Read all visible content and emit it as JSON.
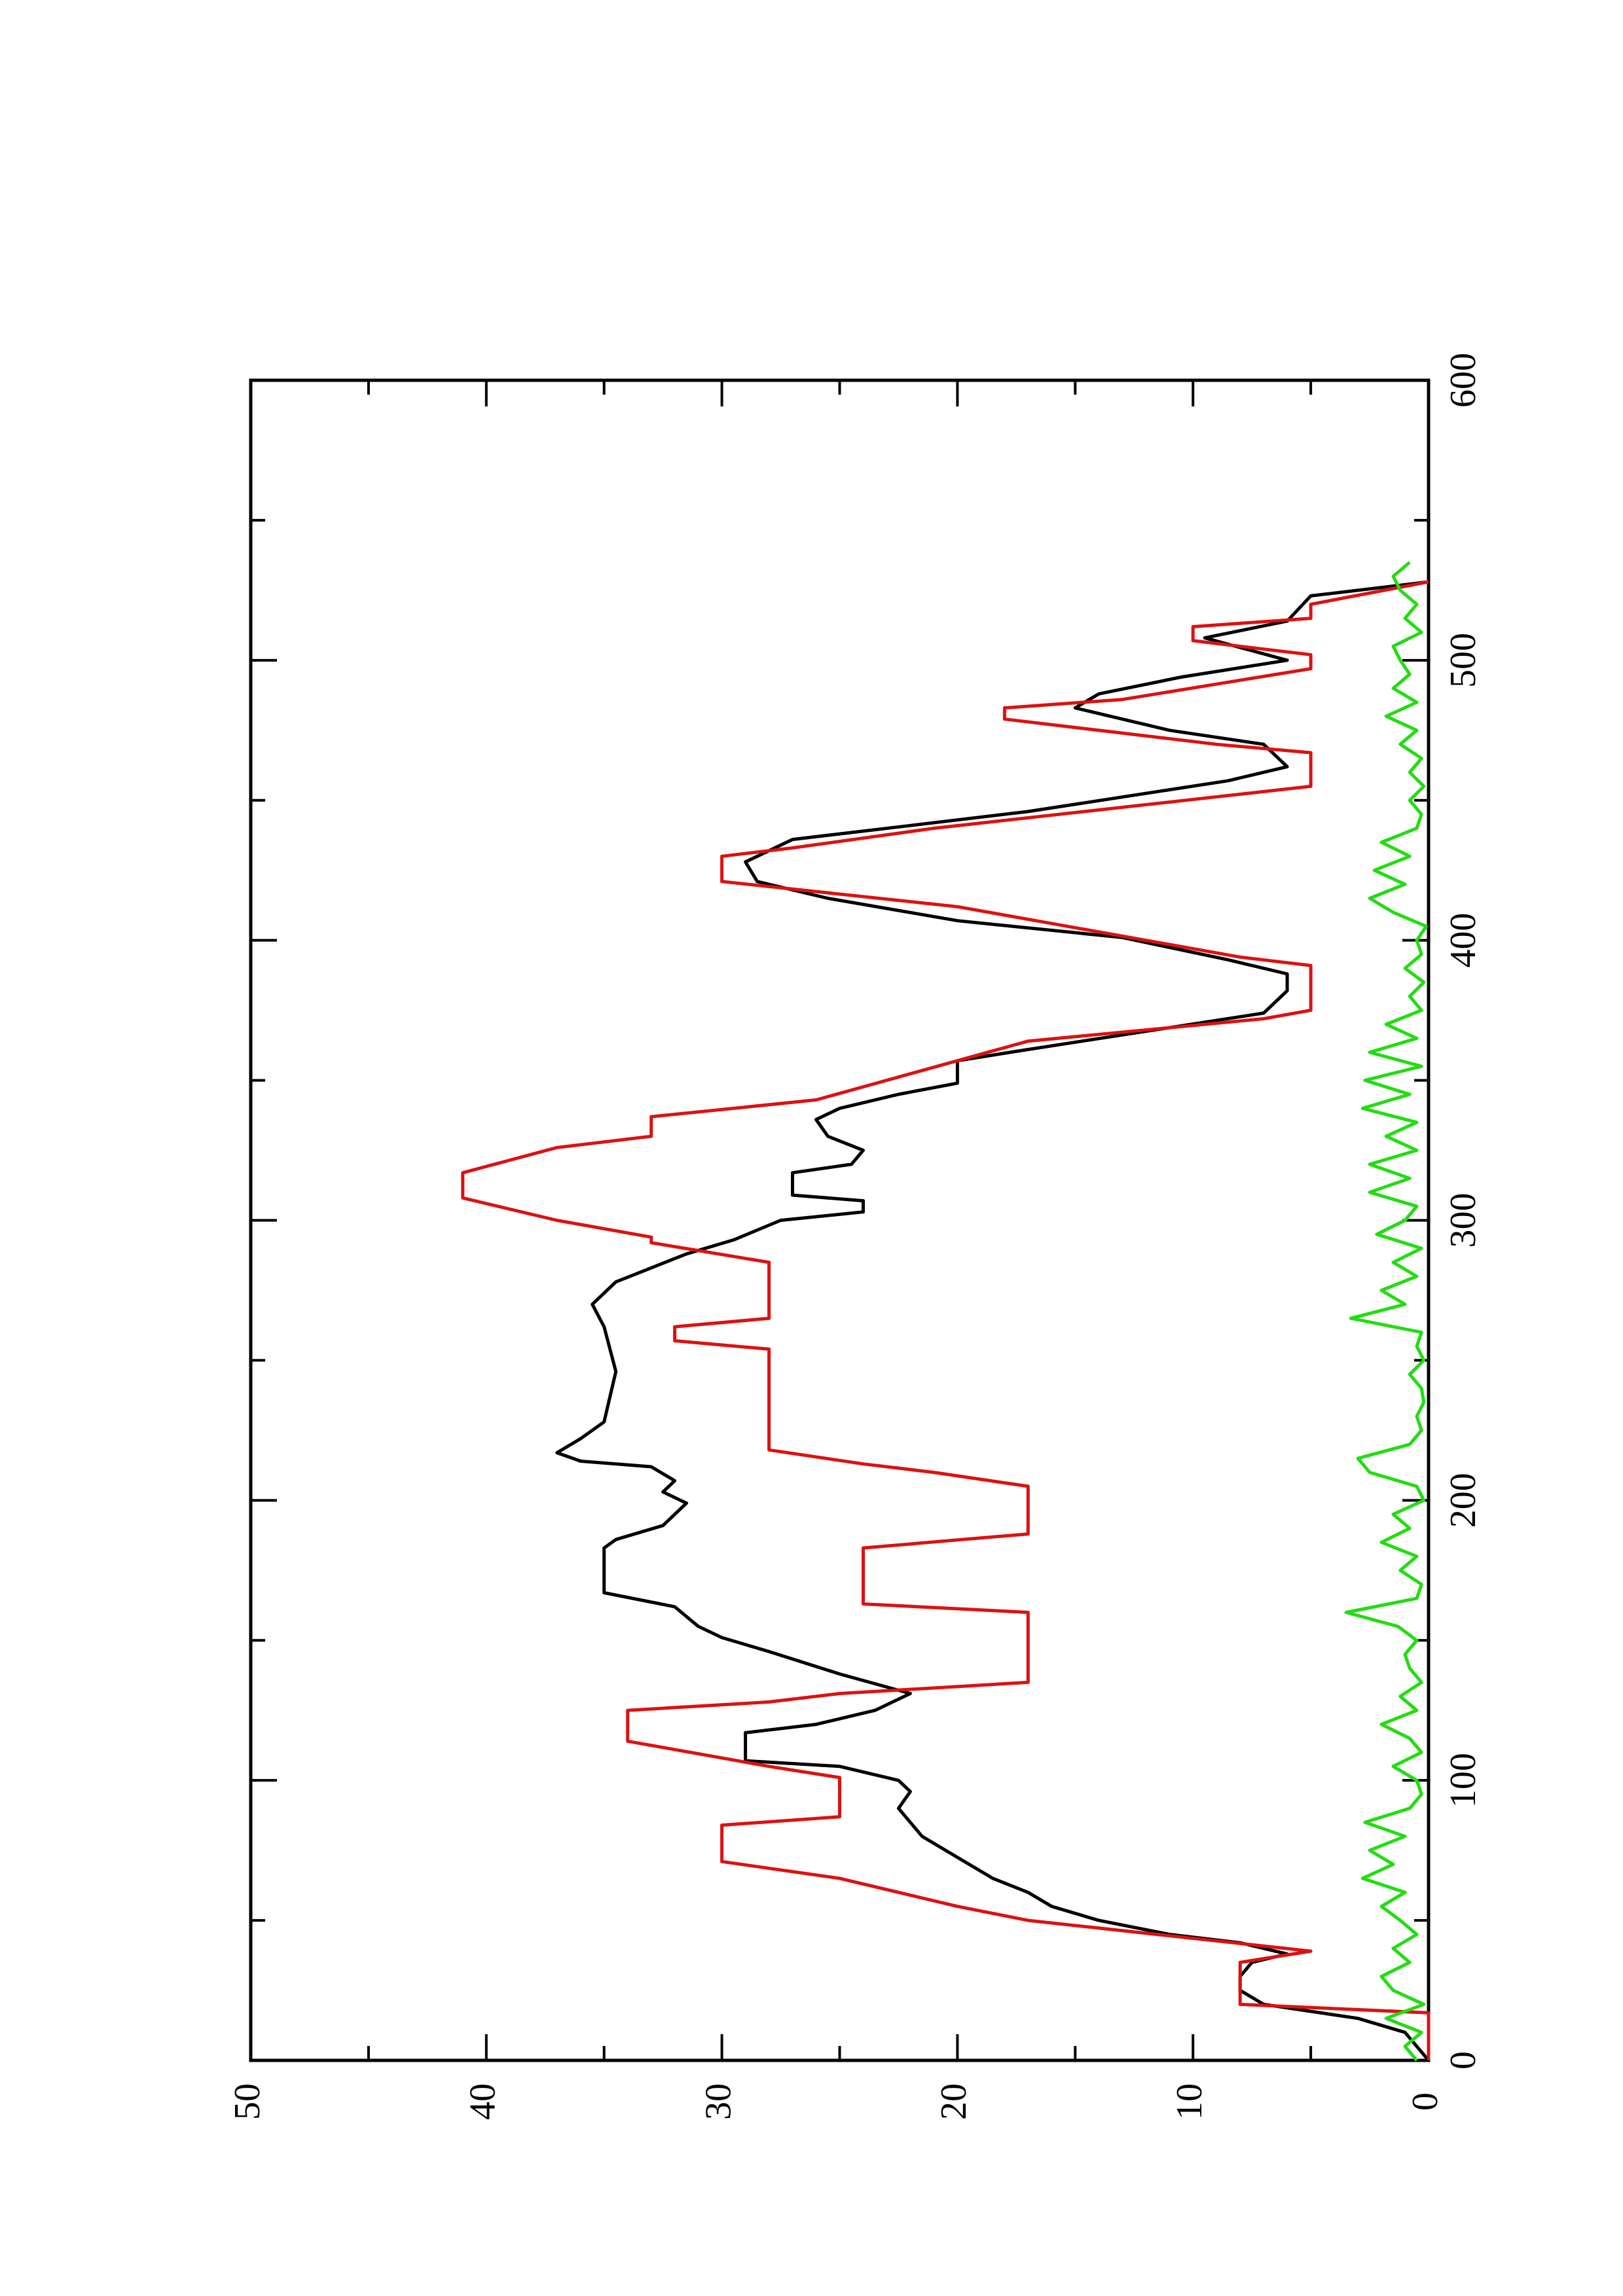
{
  "chart_data": {
    "type": "line",
    "xlim": [
      0,
      600
    ],
    "ylim": [
      0,
      50
    ],
    "xticks": [
      0,
      100,
      200,
      300,
      400,
      500,
      600
    ],
    "yticks": [
      0,
      10,
      20,
      30,
      40,
      50
    ],
    "xminorticks": [
      50,
      150,
      250,
      350,
      450,
      550
    ],
    "yminorticks": [
      5,
      15,
      25,
      35,
      45
    ],
    "series": [
      {
        "color": "#000000",
        "x": [
          0,
          10,
          15,
          20,
          25,
          30,
          35,
          38,
          42,
          45,
          50,
          55,
          60,
          65,
          70,
          75,
          80,
          85,
          90,
          96,
          100,
          105,
          107,
          117,
          120,
          125,
          131,
          138,
          146,
          151,
          155,
          162,
          167,
          183,
          186,
          191,
          199,
          203,
          207,
          212,
          214,
          217,
          222,
          228,
          246,
          262,
          270,
          278,
          283,
          288,
          293,
          300,
          303,
          307,
          309,
          317,
          320,
          325,
          330,
          336,
          340,
          345,
          349,
          357,
          361,
          374,
          382,
          388,
          393,
          401,
          407,
          415,
          421,
          428,
          436,
          441,
          446,
          457,
          462,
          470,
          475,
          483,
          488,
          494,
          500,
          508,
          514,
          523,
          528,
          536
        ],
        "values": [
          0,
          1,
          3,
          7,
          8,
          8,
          7.5,
          6,
          8,
          11,
          14,
          16,
          17,
          18.5,
          19.5,
          20.5,
          21.5,
          22,
          22.5,
          22,
          22.5,
          25,
          29,
          29,
          26,
          23.5,
          22,
          25,
          28,
          30,
          31,
          32,
          35,
          35,
          34.5,
          32.5,
          31.5,
          32.5,
          32,
          33,
          36,
          37,
          36,
          35,
          34.5,
          35,
          35.5,
          34.5,
          33,
          31.5,
          29.5,
          27.5,
          24,
          24,
          27,
          27,
          24.5,
          24,
          25.5,
          26,
          25,
          22.5,
          20,
          20,
          17,
          7,
          6,
          6,
          8.5,
          13,
          20,
          25.5,
          28.5,
          29,
          27,
          22,
          17,
          8.5,
          6,
          7,
          11,
          15,
          14,
          10.5,
          6,
          9.5,
          6,
          5,
          0,
          0
        ]
      },
      {
        "color": "#dd1111",
        "x": [
          0,
          17,
          20,
          35,
          39,
          50,
          55,
          65,
          71,
          84,
          87,
          101,
          105,
          114,
          125,
          128,
          131,
          135,
          160,
          163,
          183,
          188,
          205,
          210,
          213,
          218,
          254,
          257,
          262,
          265,
          285,
          292,
          294,
          300,
          308,
          317,
          326,
          330,
          337,
          343,
          364,
          372,
          375,
          391,
          394,
          412,
          421,
          430,
          433,
          440,
          455,
          467,
          470,
          479,
          483,
          486,
          497,
          502,
          507,
          512,
          515,
          520,
          528
        ],
        "values": [
          0,
          0,
          8,
          8,
          5,
          17,
          20,
          25,
          30,
          30,
          25,
          25,
          28,
          34,
          34,
          28,
          25,
          17,
          17,
          24,
          24,
          17,
          17,
          21,
          24,
          28,
          28,
          32,
          32,
          28,
          28,
          33,
          33,
          37,
          41,
          41,
          37,
          33,
          33,
          26,
          17,
          7,
          5,
          5,
          8,
          20,
          30,
          30,
          27,
          21,
          5,
          5,
          9,
          18,
          18,
          13,
          5,
          5,
          10,
          10,
          5,
          5,
          0
        ]
      },
      {
        "color": "#22dd11",
        "x": [
          0,
          5,
          10,
          15,
          20,
          25,
          30,
          35,
          40,
          45,
          50,
          55,
          60,
          65,
          70,
          75,
          80,
          85,
          90,
          95,
          100,
          105,
          110,
          115,
          120,
          125,
          130,
          135,
          140,
          145,
          150,
          155,
          160,
          165,
          170,
          175,
          180,
          185,
          190,
          195,
          200,
          205,
          210,
          215,
          220,
          225,
          230,
          235,
          240,
          245,
          250,
          255,
          260,
          265,
          270,
          275,
          280,
          285,
          290,
          295,
          300,
          305,
          310,
          315,
          320,
          325,
          330,
          335,
          340,
          345,
          350,
          355,
          360,
          365,
          370,
          375,
          380,
          385,
          390,
          395,
          400,
          405,
          410,
          415,
          420,
          425,
          430,
          435,
          440,
          445,
          450,
          455,
          460,
          465,
          470,
          475,
          480,
          485,
          490,
          495,
          500,
          505,
          510,
          515,
          520,
          525,
          530,
          535
        ],
        "values": [
          0.5,
          1,
          0.3,
          1.8,
          0.2,
          1.5,
          2,
          0.8,
          1.5,
          0.5,
          1.2,
          2,
          1,
          2.8,
          1.5,
          2.5,
          1,
          2.7,
          0.8,
          0.3,
          0.5,
          1.5,
          0.3,
          0.8,
          2,
          0.5,
          1.2,
          0.3,
          0.8,
          1,
          0.5,
          1.3,
          3.5,
          0.5,
          0.3,
          1.2,
          0.5,
          2,
          0.8,
          1.5,
          0.2,
          0.5,
          2.5,
          3,
          0.8,
          0.3,
          0.5,
          0.2,
          0.3,
          0.8,
          0.2,
          0.5,
          0.3,
          3.3,
          1,
          2,
          0.5,
          1.5,
          0.3,
          2.2,
          1,
          0.5,
          2.5,
          0.8,
          2.5,
          0.5,
          1.8,
          0.5,
          2.8,
          0.8,
          2.7,
          0.3,
          2.5,
          0.5,
          1.8,
          0.3,
          0.8,
          0.2,
          1,
          0.3,
          0.5,
          0.1,
          1.5,
          2.5,
          1,
          2.3,
          0.8,
          2,
          0.5,
          0.3,
          0.8,
          0.2,
          0.8,
          0.3,
          1.2,
          0.5,
          1.8,
          0.5,
          1.5,
          0.8,
          1.2,
          1.5,
          0.3,
          1,
          0.5,
          1.2,
          1.5,
          0.8
        ]
      }
    ]
  }
}
